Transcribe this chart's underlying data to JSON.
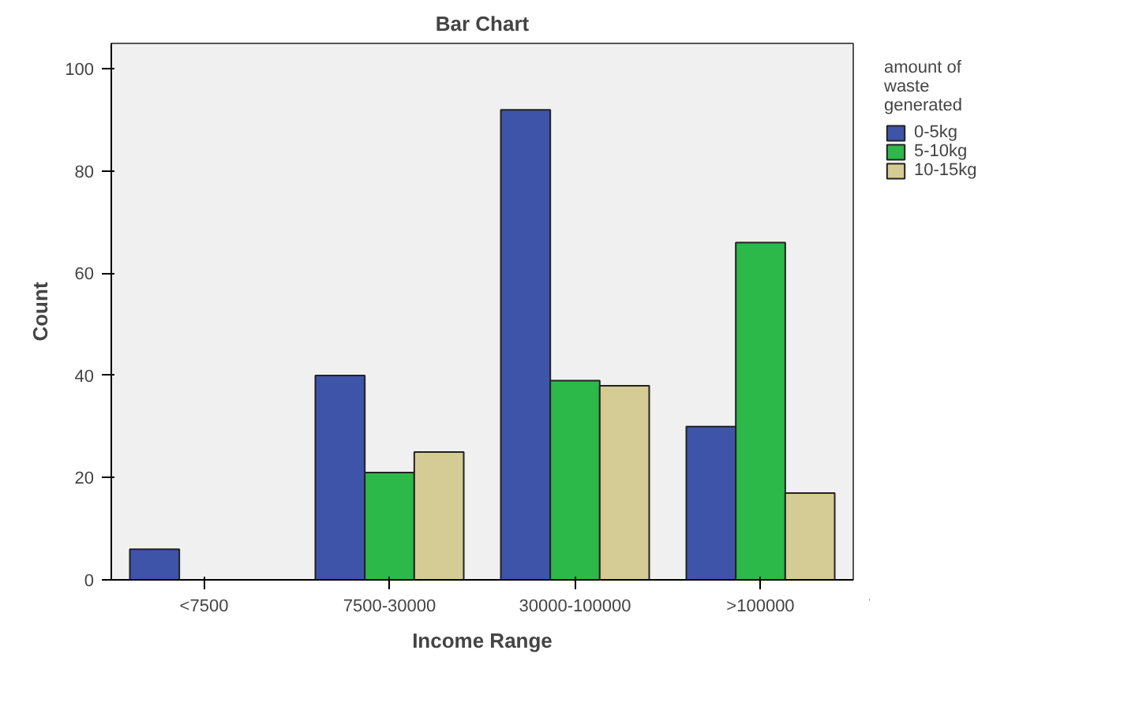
{
  "chart_data": {
    "type": "bar",
    "title": "Bar Chart",
    "xlabel": "Income Range",
    "ylabel": "Count",
    "legend_title": "amount of\nwaste\ngenerated",
    "legend": "top right",
    "grid": false,
    "categories": [
      "<7500",
      "7500-30000",
      "30000-100000",
      ">100000"
    ],
    "ylim": [
      0,
      105
    ],
    "yticks": [
      0,
      20,
      40,
      60,
      80,
      100
    ],
    "series": [
      {
        "name": "0-5kg",
        "color": "#3e54a8",
        "values": [
          6,
          40,
          92,
          30
        ]
      },
      {
        "name": "5-10kg",
        "color": "#2db84a",
        "values": [
          null,
          21,
          39,
          66
        ]
      },
      {
        "name": "10-15kg",
        "color": "#d4cc94",
        "values": [
          null,
          25,
          38,
          17
        ]
      }
    ]
  }
}
